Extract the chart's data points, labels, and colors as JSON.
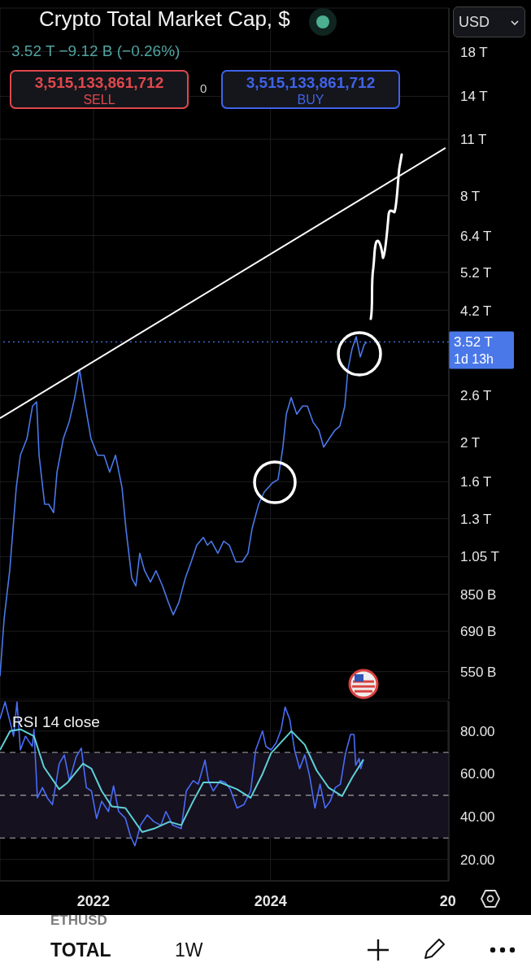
{
  "chart_data": [
    {
      "type": "line",
      "title": "Crypto Total Market Cap, $",
      "subtitle": "3.52 T −9.12 B (−0.26%)",
      "annotations": [
        "1d 13h",
        "3,515,133,861,712",
        "SELL",
        "0",
        "3,515,133,861,712",
        "BUY",
        "USD",
        "TOTAL",
        "1W",
        "ETHUSD"
      ],
      "xlim": [
        "2020-12-12",
        "2026-01-05"
      ],
      "xticks": [
        {
          "value": "2022-01-01",
          "label": null
        },
        {
          "value": "2024-01-01",
          "label": null
        }
      ],
      "ylim": [
        470000000000.0,
        23000000000000.0
      ],
      "yticks": [
        {
          "value": 550000000000.0,
          "label": "550 B"
        },
        {
          "value": 690000000000.0,
          "label": "690 B"
        },
        {
          "value": 850000000000.0,
          "label": "850 B"
        },
        {
          "value": 1050000000000.0,
          "label": "1.05 T"
        },
        {
          "value": 1300000000000.0,
          "label": "1.3 T"
        },
        {
          "value": 1600000000000.0,
          "label": "1.6 T"
        },
        {
          "value": 2000000000000.0,
          "label": "2 T"
        },
        {
          "value": 2600000000000.0,
          "label": "2.6 T"
        },
        {
          "value": 4200000000000.0,
          "label": "4.2 T"
        },
        {
          "value": 5200000000000.0,
          "label": "5.2 T"
        },
        {
          "value": 6400000000000.0,
          "label": "6.4 T"
        },
        {
          "value": 8000000000000.0,
          "label": "8 T"
        },
        {
          "value": 11000000000000.0,
          "label": "11 T"
        },
        {
          "value": 14000000000000.0,
          "label": "14 T"
        },
        {
          "value": 18000000000000.0,
          "label": "18 T"
        }
      ],
      "log": true,
      "grid": true,
      "tick_labels": "y",
      "marker": "none",
      "ref_lines": [
        {
          "axis": "y",
          "value": 3515000000000.0,
          "label": "3.52 T",
          "color": "#4a78e8",
          "line_style": "dotted"
        }
      ],
      "series": [
        {
          "color": "#4a78e8",
          "x": [
            "2020-12-12",
            "2020-12-29",
            "2021-01-21",
            "2021-02-17",
            "2021-03-06",
            "2021-04-02",
            "2021-04-25",
            "2021-05-12",
            "2021-05-22",
            "2021-06-14",
            "2021-07-01",
            "2021-07-21",
            "2021-08-04",
            "2021-08-30",
            "2021-09-23",
            "2021-10-16",
            "2021-11-05",
            "2021-11-29",
            "2021-12-22",
            "2022-01-18",
            "2022-02-14",
            "2022-03-09",
            "2022-04-02",
            "2022-04-29",
            "2022-05-15",
            "2022-06-08",
            "2022-06-25",
            "2022-07-11",
            "2022-07-31",
            "2022-08-24",
            "2022-09-16",
            "2022-10-13",
            "2022-11-06",
            "2022-11-26",
            "2022-12-19",
            "2023-01-15",
            "2023-02-08",
            "2023-03-03",
            "2023-03-30",
            "2023-04-16",
            "2023-05-02",
            "2023-05-29",
            "2023-06-22",
            "2023-07-15",
            "2023-08-11",
            "2023-09-07",
            "2023-09-30",
            "2023-10-17",
            "2023-11-13",
            "2023-12-06",
            "2024-01-09",
            "2024-02-01",
            "2024-02-21",
            "2024-03-06",
            "2024-03-26",
            "2024-04-18",
            "2024-05-12",
            "2024-06-01",
            "2024-06-24",
            "2024-07-18",
            "2024-08-07",
            "2024-08-30",
            "2024-09-23",
            "2024-10-13",
            "2024-11-02",
            "2024-11-15",
            "2024-12-02",
            "2024-12-19",
            "2025-01-05",
            "2025-01-21",
            "2025-01-31"
          ],
          "values": [
            536000000000.0,
            740000000000.0,
            970000000000.0,
            1547000000000.0,
            1858000000000.0,
            2040000000000.0,
            2450000000000.0,
            2510000000000.0,
            1858000000000.0,
            1410000000000.0,
            1410000000000.0,
            1345000000000.0,
            1690000000000.0,
            2040000000000.0,
            2240000000000.0,
            2570000000000.0,
            3010000000000.0,
            2450000000000.0,
            2040000000000.0,
            1858000000000.0,
            1858000000000.0,
            1690000000000.0,
            1858000000000.0,
            1547000000000.0,
            1230000000000.0,
            931000000000.0,
            890000000000.0,
            1070000000000.0,
            970000000000.0,
            910000000000.0,
            970000000000.0,
            890000000000.0,
            811000000000.0,
            757000000000.0,
            811000000000.0,
            931000000000.0,
            1020000000000.0,
            1120000000000.0,
            1170000000000.0,
            1120000000000.0,
            1145000000000.0,
            1070000000000.0,
            1145000000000.0,
            1120000000000.0,
            1020000000000.0,
            1020000000000.0,
            1070000000000.0,
            1230000000000.0,
            1410000000000.0,
            1510000000000.0,
            1590000000000.0,
            1620000000000.0,
            1945000000000.0,
            2340000000000.0,
            2570000000000.0,
            2340000000000.0,
            2450000000000.0,
            2450000000000.0,
            2240000000000.0,
            2140000000000.0,
            1945000000000.0,
            2040000000000.0,
            2140000000000.0,
            2190000000000.0,
            2450000000000.0,
            3010000000000.0,
            3380000000000.0,
            3620000000000.0,
            3230000000000.0,
            3460000000000.0,
            3515000000000.0
          ]
        },
        {
          "color": "#ffffff",
          "x": [
            "2020-12-12",
            "2025-12-22"
          ],
          "values": [
            2288000000000.0,
            10470000000000.0
          ]
        }
      ]
    },
    {
      "type": "line",
      "title": "RSI 14 close",
      "xlim": [
        "2020-12-12",
        "2026-01-05"
      ],
      "xticks": [
        {
          "value": "2022-01-01",
          "label": "2022"
        },
        {
          "value": "2024-01-01",
          "label": "2024"
        },
        {
          "value": "2026-01-01",
          "label": "20"
        }
      ],
      "ylim": [
        10,
        94
      ],
      "yticks": [
        {
          "value": 20,
          "label": "20.00"
        },
        {
          "value": 40,
          "label": "40.00"
        },
        {
          "value": 60,
          "label": "60.00"
        },
        {
          "value": 80,
          "label": "80.00"
        }
      ],
      "grid": true,
      "marker": "none",
      "bands": [
        {
          "axis": "y",
          "from": 30,
          "to": 70,
          "color": "#15111f"
        }
      ],
      "ref_lines": [
        {
          "axis": "y",
          "value": 70,
          "color": "#8a8a8a",
          "line_style": "dashed"
        },
        {
          "axis": "y",
          "value": 50,
          "color": "#8a8a8a",
          "line_style": "dashed"
        },
        {
          "axis": "y",
          "value": 30,
          "color": "#8a8a8a",
          "line_style": "dashed"
        }
      ],
      "series": [
        {
          "color": "#4a6cf7",
          "x": [
            "2020-12-12",
            "2021-01-02",
            "2021-02-06",
            "2021-02-20",
            "2021-03-06",
            "2021-03-27",
            "2021-04-24",
            "2021-05-01",
            "2021-05-15",
            "2021-06-05",
            "2021-06-25",
            "2021-07-16",
            "2021-08-13",
            "2021-09-03",
            "2021-09-24",
            "2021-10-22",
            "2021-11-12",
            "2021-12-03",
            "2021-12-24",
            "2022-01-14",
            "2022-02-04",
            "2022-03-04",
            "2022-03-25",
            "2022-04-15",
            "2022-05-13",
            "2022-06-02",
            "2022-06-21",
            "2022-07-14",
            "2022-08-11",
            "2022-09-08",
            "2022-10-06",
            "2022-10-27",
            "2022-11-24",
            "2022-12-29",
            "2023-01-19",
            "2023-02-16",
            "2023-03-09",
            "2023-04-06",
            "2023-04-20",
            "2023-05-10",
            "2023-06-07",
            "2023-06-28",
            "2023-07-19",
            "2023-08-16",
            "2023-09-13",
            "2023-10-11",
            "2023-11-01",
            "2023-11-29",
            "2023-12-13",
            "2024-01-03",
            "2024-01-24",
            "2024-02-14",
            "2024-03-01",
            "2024-03-20",
            "2024-04-09",
            "2024-04-30",
            "2024-05-21",
            "2024-06-11",
            "2024-07-02",
            "2024-07-23",
            "2024-08-13",
            "2024-09-03",
            "2024-09-24",
            "2024-10-15",
            "2024-11-05",
            "2024-11-26",
            "2024-12-10",
            "2024-12-17",
            "2024-12-31",
            "2025-01-07",
            "2025-01-18"
          ],
          "values": [
            85.6,
            93.6,
            77.6,
            93.6,
            71.2,
            77.6,
            72.8,
            80.8,
            48.8,
            53.6,
            48.8,
            45.6,
            64.8,
            68.8,
            56.8,
            68,
            72,
            53.6,
            52,
            39.2,
            47.2,
            42.4,
            54.4,
            42.4,
            39.2,
            31.2,
            26.4,
            36,
            40.8,
            37.6,
            36,
            42.4,
            36,
            34.4,
            52,
            56.8,
            55.2,
            66.4,
            56.8,
            52,
            56.8,
            56,
            52.8,
            44,
            45.6,
            52,
            71.2,
            80,
            72.8,
            71.2,
            74.4,
            80.8,
            91.2,
            85.6,
            71.2,
            62.4,
            68.8,
            58.4,
            44,
            55.2,
            44,
            47.2,
            53.6,
            55.2,
            69.6,
            78.4,
            78.4,
            64,
            67.2,
            62.4,
            66.7
          ]
        },
        {
          "color": "#5fd0d6",
          "x": [
            "2020-12-12",
            "2021-01-23",
            "2021-03-06",
            "2021-05-01",
            "2021-06-11",
            "2021-08-13",
            "2021-09-17",
            "2021-11-19",
            "2021-12-24",
            "2022-02-04",
            "2022-03-18",
            "2022-05-13",
            "2022-07-21",
            "2022-09-08",
            "2022-11-10",
            "2022-12-29",
            "2023-02-16",
            "2023-03-30",
            "2023-06-07",
            "2023-08-16",
            "2023-10-11",
            "2023-11-29",
            "2024-01-03",
            "2024-03-27",
            "2024-05-21",
            "2024-07-09",
            "2024-08-27",
            "2024-10-22",
            "2024-12-03",
            "2025-01-18"
          ],
          "values": [
            71.2,
            80,
            80.8,
            77.6,
            63.2,
            52.8,
            56,
            64.8,
            62.4,
            52,
            44.8,
            44,
            32.8,
            34.4,
            37.6,
            36,
            47.2,
            56,
            56,
            52.8,
            48.8,
            60,
            69.6,
            80,
            73.6,
            61.6,
            53.6,
            49.6,
            58.4,
            66.7
          ]
        }
      ]
    }
  ]
}
